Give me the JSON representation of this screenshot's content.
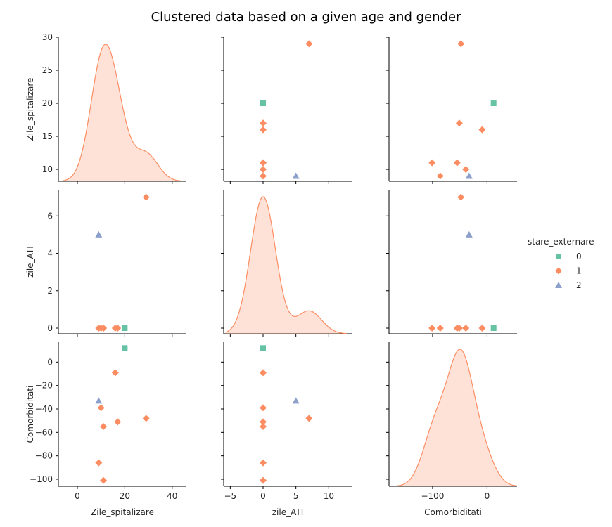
{
  "chart_data": {
    "type": "scatter",
    "title": "Clustered data based on a given age and gender",
    "variables": [
      "Zile_spitalizare",
      "zile_ATI",
      "Comorbiditati"
    ],
    "legend": {
      "title": "stare_externare",
      "placement": "right",
      "entries": [
        {
          "label": "0",
          "color": "#66c2a5",
          "marker": "square"
        },
        {
          "label": "1",
          "color": "#fc8d62",
          "marker": "diamond"
        },
        {
          "label": "2",
          "color": "#8da0cb",
          "marker": "triangle"
        }
      ]
    },
    "axes": {
      "Zile_spitalizare": {
        "range": [
          -8,
          46
        ],
        "ticks": [
          0,
          20,
          40
        ],
        "y_range": [
          8.2,
          30
        ],
        "y_ticks": [
          10,
          15,
          20,
          25,
          30
        ]
      },
      "zile_ATI": {
        "range": [
          -6,
          13.5
        ],
        "ticks": [
          -5,
          0,
          5,
          10
        ],
        "y_range": [
          -0.3,
          7.4
        ],
        "y_ticks": [
          0,
          2,
          4,
          6
        ]
      },
      "Comorbiditati": {
        "range": [
          -180,
          55
        ],
        "ticks": [
          -100,
          0
        ],
        "y_range": [
          -106,
          17
        ],
        "y_ticks": [
          -100,
          -80,
          -60,
          -40,
          -20,
          0
        ]
      }
    },
    "points": [
      {
        "Zile_spitalizare": 20,
        "zile_ATI": 0,
        "Comorbiditati": 12,
        "stare_externare": 0
      },
      {
        "Zile_spitalizare": 29,
        "zile_ATI": 7,
        "Comorbiditati": -48,
        "stare_externare": 1
      },
      {
        "Zile_spitalizare": 17,
        "zile_ATI": 0,
        "Comorbiditati": -51,
        "stare_externare": 1
      },
      {
        "Zile_spitalizare": 16,
        "zile_ATI": 0,
        "Comorbiditati": -9,
        "stare_externare": 1
      },
      {
        "Zile_spitalizare": 11,
        "zile_ATI": 0,
        "Comorbiditati": -55,
        "stare_externare": 1
      },
      {
        "Zile_spitalizare": 11,
        "zile_ATI": 0,
        "Comorbiditati": -101,
        "stare_externare": 1
      },
      {
        "Zile_spitalizare": 10,
        "zile_ATI": 0,
        "Comorbiditati": -39,
        "stare_externare": 1
      },
      {
        "Zile_spitalizare": 9,
        "zile_ATI": 0,
        "Comorbiditati": -86,
        "stare_externare": 1
      },
      {
        "Zile_spitalizare": 9,
        "zile_ATI": 5,
        "Comorbiditati": -33,
        "stare_externare": 2
      }
    ],
    "diagonal": "kde"
  }
}
